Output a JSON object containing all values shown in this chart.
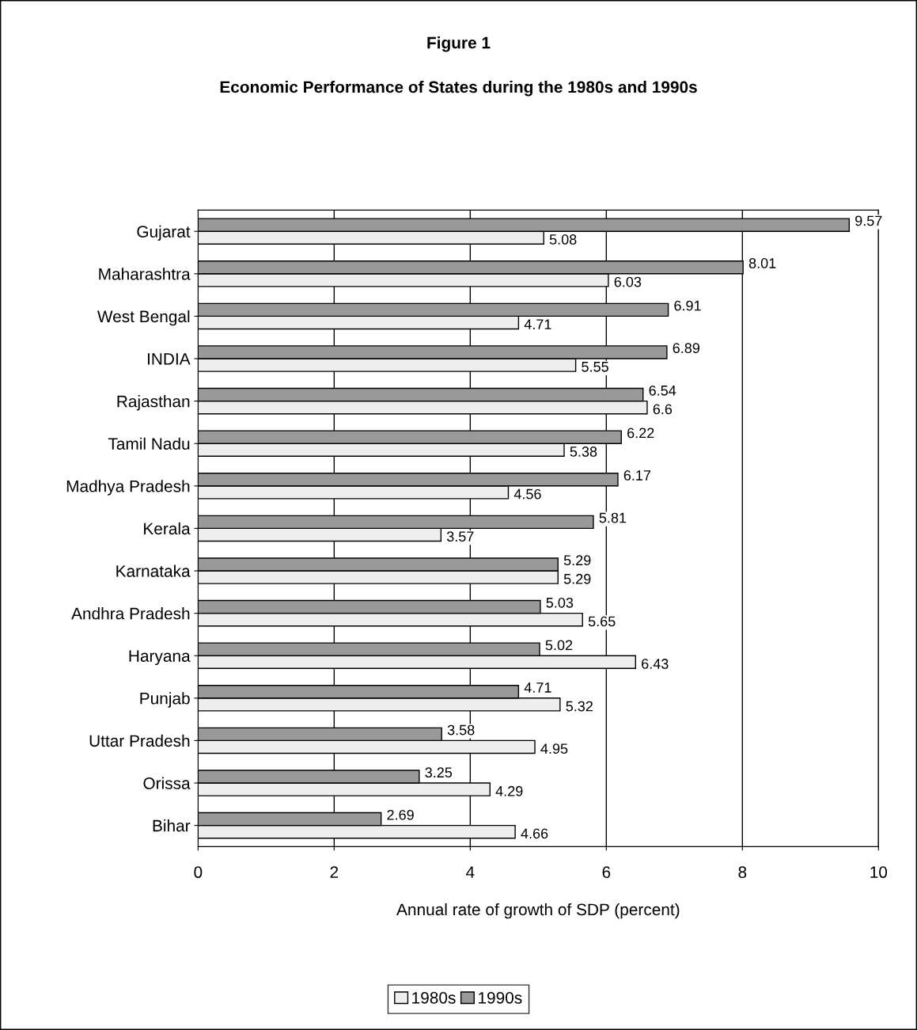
{
  "chart_data": {
    "type": "bar",
    "orientation": "horizontal",
    "title": "Figure 1",
    "subtitle": "Economic Performance of States during the 1980s and 1990s",
    "xlabel": "Annual rate of growth of SDP (percent)",
    "categories": [
      "Gujarat",
      "Maharashtra",
      "West Bengal",
      "INDIA",
      "Rajasthan",
      "Tamil Nadu",
      "Madhya Pradesh",
      "Kerala",
      "Karnataka",
      "Andhra Pradesh",
      "Haryana",
      "Punjab",
      "Uttar Pradesh",
      "Orissa",
      "Bihar"
    ],
    "series": [
      {
        "name": "1980s",
        "color": "#eeeeee",
        "values": [
          5.08,
          6.03,
          4.71,
          5.55,
          6.6,
          5.38,
          4.56,
          3.57,
          5.29,
          5.65,
          6.43,
          5.32,
          4.95,
          4.29,
          4.66
        ]
      },
      {
        "name": "1990s",
        "color": "#999999",
        "values": [
          9.57,
          8.01,
          6.91,
          6.89,
          6.54,
          6.22,
          6.17,
          5.81,
          5.29,
          5.03,
          5.02,
          4.71,
          3.58,
          3.25,
          2.69
        ]
      }
    ],
    "xlim": [
      0,
      10
    ],
    "xticks": [
      0,
      2,
      4,
      6,
      8,
      10
    ],
    "grid": "x",
    "legend": "bottom",
    "data_labels": true
  }
}
